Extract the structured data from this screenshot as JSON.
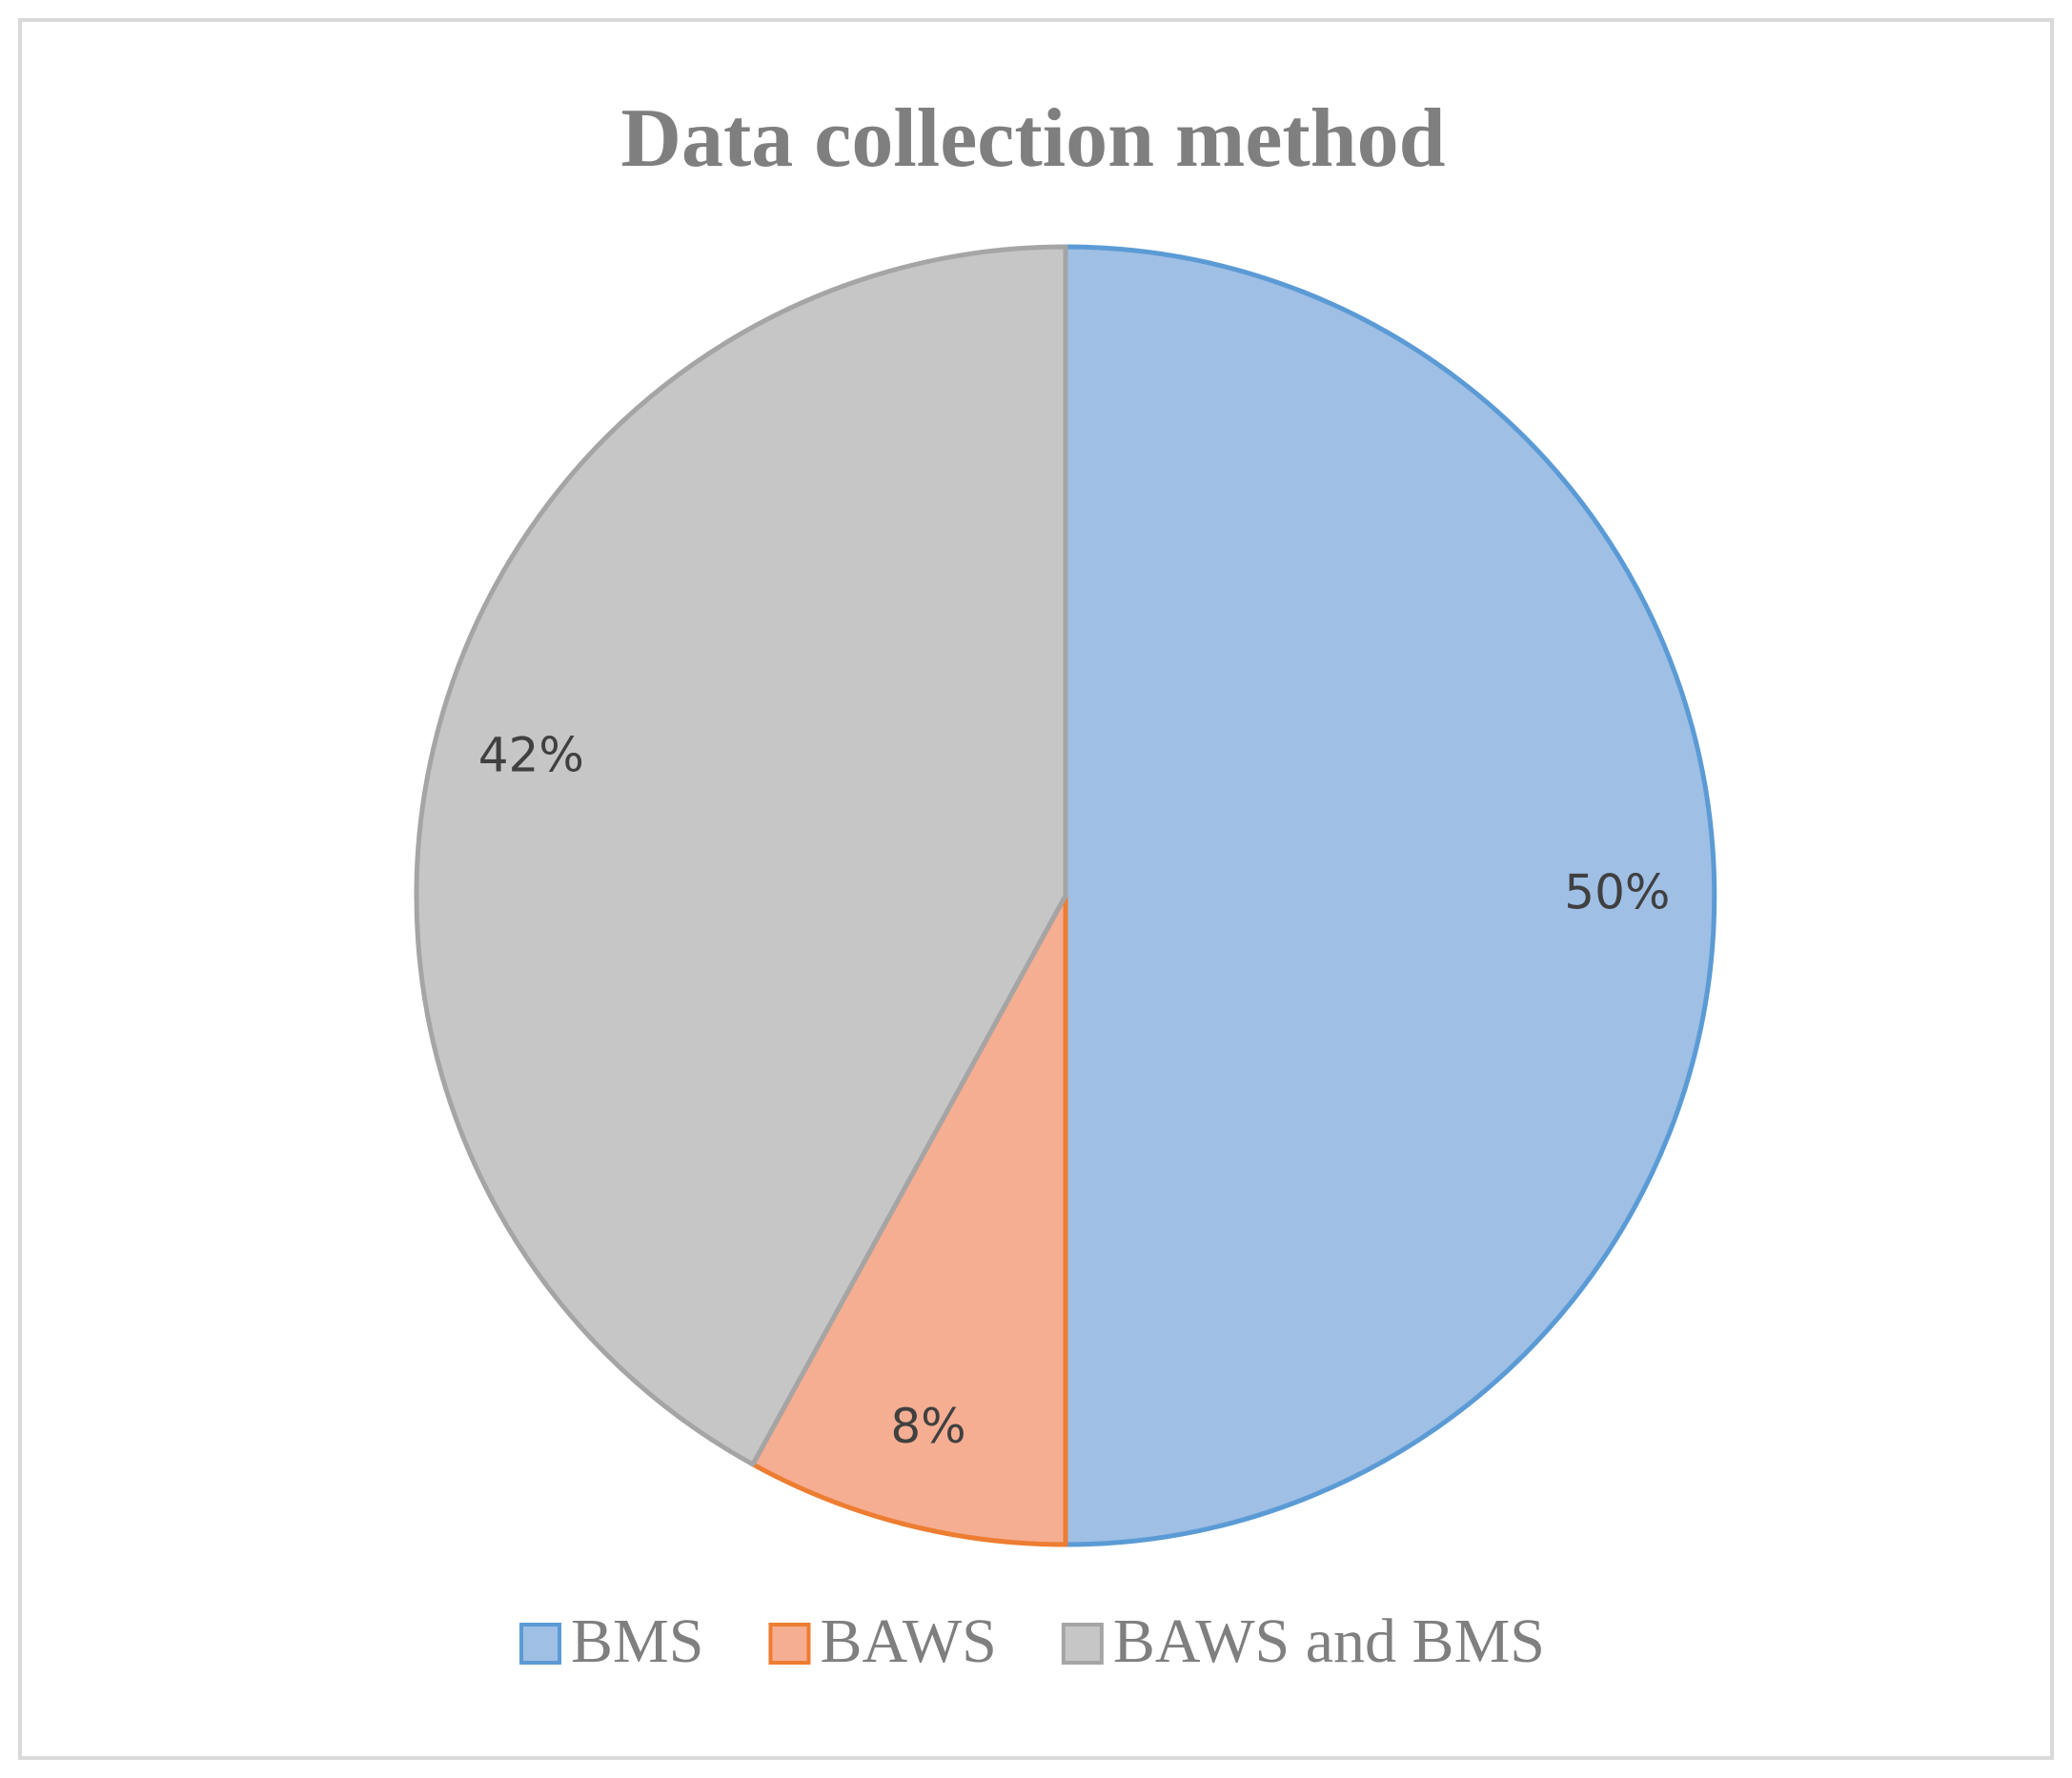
{
  "chart_data": {
    "type": "pie",
    "title": "Data collection method",
    "categories": [
      "BMS",
      "BAWS",
      "BAWS and BMS"
    ],
    "values": [
      50,
      8,
      42
    ],
    "value_labels": [
      "50%",
      "8%",
      "42%"
    ],
    "colors": [
      "#9fbfe5",
      "#f5ae92",
      "#c6c6c6"
    ],
    "border_colors": [
      "#5b9bd5",
      "#ed7d31",
      "#a5a5a5"
    ],
    "legend": "bottom"
  }
}
